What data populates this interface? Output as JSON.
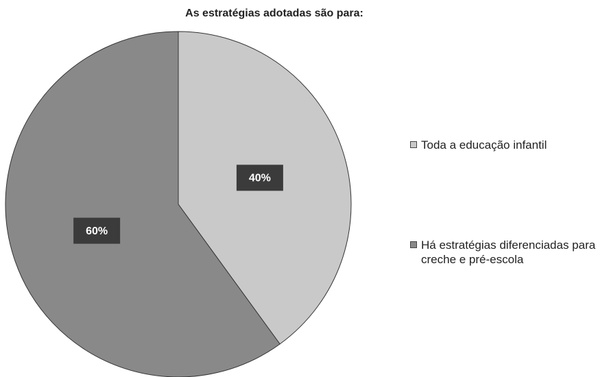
{
  "chart_data": {
    "type": "pie",
    "title": "As estratégias adotadas são para:",
    "categories": [
      "Toda a educação infantil",
      "Há estratégias diferenciadas para creche e pré-escola"
    ],
    "values": [
      40,
      60
    ],
    "value_labels": [
      "40%",
      "60%"
    ],
    "colors": [
      "#c9c9c9",
      "#898989"
    ],
    "legend": "right"
  }
}
